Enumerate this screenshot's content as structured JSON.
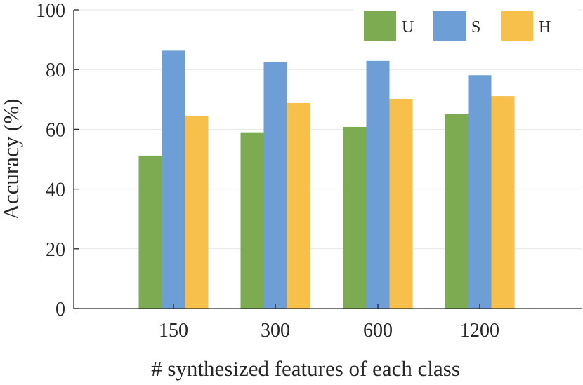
{
  "chart_data": {
    "type": "bar",
    "title": "",
    "xlabel": "# synthesized features of each class",
    "ylabel": "Accuracy (%)",
    "categories": [
      "150",
      "300",
      "600",
      "1200"
    ],
    "series": [
      {
        "name": "U",
        "values": [
          51.2,
          59.0,
          60.8,
          65.1
        ],
        "color": "#7dab52"
      },
      {
        "name": "S",
        "values": [
          86.3,
          82.5,
          82.9,
          78.1
        ],
        "color": "#6d9ed6"
      },
      {
        "name": "H",
        "values": [
          64.5,
          68.8,
          70.2,
          71.1
        ],
        "color": "#f6c04a"
      }
    ],
    "ylim": [
      0,
      100
    ],
    "yticks": [
      "0",
      "20",
      "40",
      "60",
      "80",
      "100"
    ],
    "grid": true,
    "legend": "top-right"
  }
}
